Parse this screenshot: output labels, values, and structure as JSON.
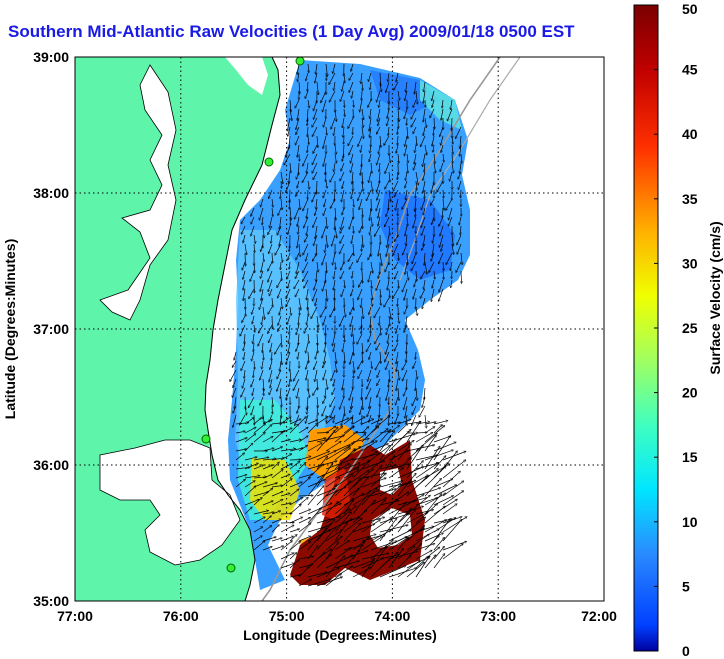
{
  "title": "Southern Mid-Atlantic Raw Velocities (1 Day Avg) 2009/01/18 0500 EST",
  "map": {
    "x_axis_label": "Longitude (Degrees:Minutes)",
    "y_axis_label": "Latitude (Degrees:Minutes)",
    "x_ticks": [
      "77:00",
      "76:00",
      "75:00",
      "74:00",
      "73:00",
      "72:00"
    ],
    "y_ticks": [
      "39:00",
      "38:00",
      "37:00",
      "36:00",
      "35:00"
    ],
    "lon_range": [
      -77,
      -72
    ],
    "lat_range": [
      35,
      39
    ],
    "grid": "dotted",
    "land_color": "#5ef5aa"
  },
  "colorbar": {
    "label": "Surface Velocity (cm/s)",
    "ticks": [
      "50",
      "45",
      "40",
      "35",
      "30",
      "25",
      "20",
      "15",
      "10",
      "5",
      "0"
    ],
    "range": [
      0,
      50
    ],
    "colormap": "jet"
  }
}
